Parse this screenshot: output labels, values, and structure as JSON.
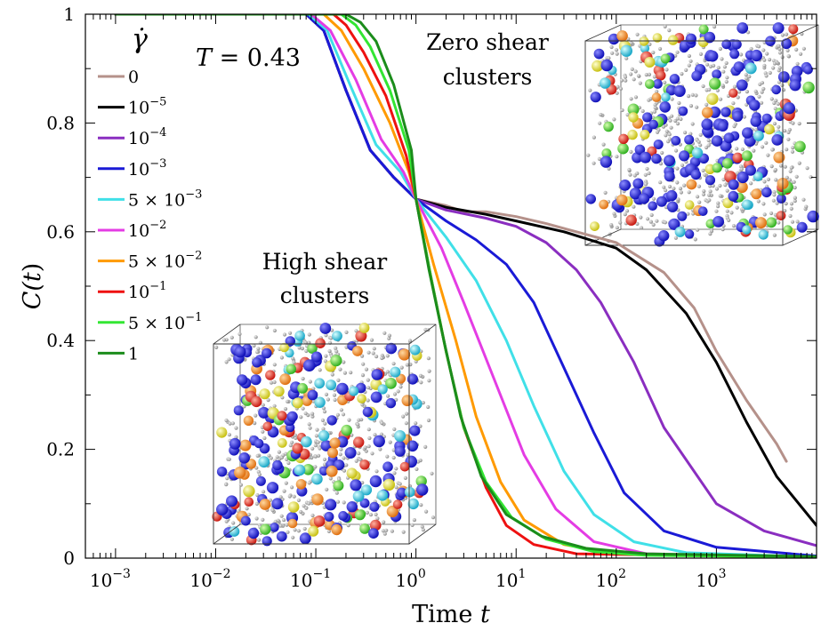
{
  "chart_data": {
    "type": "line",
    "x_scale": "log",
    "xlabel_prefix": "Time ",
    "xlabel_var": "t",
    "ylabel_main": "C(",
    "ylabel_var": "t",
    "ylabel_close": ")",
    "xlim": [
      0.0005,
      10000
    ],
    "ylim": [
      0,
      1
    ],
    "x_ticks": [
      {
        "value": 0.001,
        "base": "10",
        "exp": "−3"
      },
      {
        "value": 0.01,
        "base": "10",
        "exp": "−2"
      },
      {
        "value": 0.1,
        "base": "10",
        "exp": "−1"
      },
      {
        "value": 1,
        "base": "10",
        "exp": "0"
      },
      {
        "value": 10,
        "base": "10",
        "exp": "1"
      },
      {
        "value": 100,
        "base": "10",
        "exp": "2"
      },
      {
        "value": 1000,
        "base": "10",
        "exp": "3"
      }
    ],
    "y_ticks": [
      {
        "value": 0,
        "label": "0"
      },
      {
        "value": 0.2,
        "label": "0.2"
      },
      {
        "value": 0.4,
        "label": "0.4"
      },
      {
        "value": 0.6,
        "label": "0.6"
      },
      {
        "value": 0.8,
        "label": "0.8"
      },
      {
        "value": 1,
        "label": "1"
      }
    ],
    "legend_title": "γ̇",
    "legend_position": "top-left",
    "temperature": {
      "var": "T",
      "rest": " = 0.43"
    },
    "annotations": [
      {
        "line1": "Zero shear",
        "line2": "clusters"
      },
      {
        "line1": "High shear",
        "line2": "clusters"
      }
    ],
    "series": [
      {
        "name_main": "0",
        "name_exp": "",
        "color": "#b5918a",
        "points": [
          [
            0.001,
            1
          ],
          [
            0.08,
            1
          ],
          [
            0.12,
            0.97
          ],
          [
            0.2,
            0.86
          ],
          [
            0.35,
            0.75
          ],
          [
            0.6,
            0.7
          ],
          [
            1,
            0.66
          ],
          [
            2,
            0.648
          ],
          [
            3,
            0.637
          ],
          [
            5,
            0.637
          ],
          [
            10,
            0.628
          ],
          [
            20,
            0.615
          ],
          [
            40,
            0.6
          ],
          [
            100,
            0.58
          ],
          [
            300,
            0.525
          ],
          [
            600,
            0.46
          ],
          [
            1000,
            0.38
          ],
          [
            2000,
            0.29
          ],
          [
            4000,
            0.21
          ],
          [
            5000,
            0.178
          ]
        ]
      },
      {
        "name_main": "10",
        "name_exp": "−5",
        "color": "#000000",
        "points": [
          [
            0.001,
            1
          ],
          [
            0.08,
            1
          ],
          [
            0.12,
            0.97
          ],
          [
            0.2,
            0.86
          ],
          [
            0.35,
            0.75
          ],
          [
            0.6,
            0.7
          ],
          [
            1,
            0.66
          ],
          [
            2,
            0.645
          ],
          [
            5,
            0.632
          ],
          [
            10,
            0.62
          ],
          [
            30,
            0.6
          ],
          [
            100,
            0.57
          ],
          [
            200,
            0.53
          ],
          [
            500,
            0.45
          ],
          [
            1000,
            0.36
          ],
          [
            2000,
            0.25
          ],
          [
            4000,
            0.15
          ],
          [
            10000,
            0.06
          ]
        ]
      },
      {
        "name_main": "10",
        "name_exp": "−4",
        "color": "#8a2ec0",
        "points": [
          [
            0.001,
            1
          ],
          [
            0.08,
            1
          ],
          [
            0.12,
            0.97
          ],
          [
            0.2,
            0.86
          ],
          [
            0.35,
            0.75
          ],
          [
            0.6,
            0.7
          ],
          [
            1,
            0.66
          ],
          [
            2,
            0.64
          ],
          [
            5,
            0.625
          ],
          [
            10,
            0.61
          ],
          [
            20,
            0.58
          ],
          [
            40,
            0.53
          ],
          [
            70,
            0.47
          ],
          [
            150,
            0.36
          ],
          [
            300,
            0.24
          ],
          [
            1000,
            0.1
          ],
          [
            3000,
            0.05
          ],
          [
            10000,
            0.023
          ]
        ]
      },
      {
        "name_main": "10",
        "name_exp": "−3",
        "color": "#1a1ad6",
        "points": [
          [
            0.001,
            1
          ],
          [
            0.08,
            1
          ],
          [
            0.12,
            0.97
          ],
          [
            0.2,
            0.86
          ],
          [
            0.35,
            0.75
          ],
          [
            0.6,
            0.7
          ],
          [
            1,
            0.66
          ],
          [
            2,
            0.62
          ],
          [
            4,
            0.585
          ],
          [
            8,
            0.54
          ],
          [
            15,
            0.47
          ],
          [
            30,
            0.35
          ],
          [
            60,
            0.23
          ],
          [
            120,
            0.12
          ],
          [
            300,
            0.05
          ],
          [
            1000,
            0.02
          ],
          [
            10000,
            0.004
          ]
        ]
      },
      {
        "name_main": "5 × 10",
        "name_exp": "−3",
        "color": "#40e0e8",
        "points": [
          [
            0.001,
            1
          ],
          [
            0.085,
            1
          ],
          [
            0.13,
            0.97
          ],
          [
            0.22,
            0.87
          ],
          [
            0.4,
            0.76
          ],
          [
            0.7,
            0.71
          ],
          [
            1,
            0.66
          ],
          [
            2,
            0.59
          ],
          [
            4,
            0.51
          ],
          [
            8,
            0.4
          ],
          [
            15,
            0.28
          ],
          [
            30,
            0.16
          ],
          [
            60,
            0.08
          ],
          [
            150,
            0.03
          ],
          [
            500,
            0.01
          ],
          [
            10000,
            0.002
          ]
        ]
      },
      {
        "name_main": "10",
        "name_exp": "−2",
        "color": "#e43ce4",
        "points": [
          [
            0.001,
            1
          ],
          [
            0.09,
            1
          ],
          [
            0.14,
            0.97
          ],
          [
            0.25,
            0.88
          ],
          [
            0.45,
            0.77
          ],
          [
            0.75,
            0.71
          ],
          [
            1,
            0.66
          ],
          [
            1.8,
            0.57
          ],
          [
            3,
            0.47
          ],
          [
            6,
            0.33
          ],
          [
            12,
            0.19
          ],
          [
            25,
            0.09
          ],
          [
            60,
            0.03
          ],
          [
            200,
            0.008
          ],
          [
            10000,
            0.001
          ]
        ]
      },
      {
        "name_main": "5 × 10",
        "name_exp": "−2",
        "color": "#ff9a00",
        "points": [
          [
            0.001,
            1
          ],
          [
            0.12,
            1
          ],
          [
            0.18,
            0.97
          ],
          [
            0.3,
            0.9
          ],
          [
            0.55,
            0.8
          ],
          [
            0.85,
            0.71
          ],
          [
            1,
            0.66
          ],
          [
            1.5,
            0.54
          ],
          [
            2.5,
            0.4
          ],
          [
            4,
            0.26
          ],
          [
            7,
            0.14
          ],
          [
            12,
            0.07
          ],
          [
            30,
            0.025
          ],
          [
            100,
            0.008
          ],
          [
            10000,
            0.001
          ]
        ]
      },
      {
        "name_main": "10",
        "name_exp": "−1",
        "color": "#ee1111",
        "points": [
          [
            0.001,
            1
          ],
          [
            0.15,
            1
          ],
          [
            0.2,
            0.98
          ],
          [
            0.3,
            0.93
          ],
          [
            0.5,
            0.85
          ],
          [
            0.8,
            0.74
          ],
          [
            1,
            0.66
          ],
          [
            1.4,
            0.52
          ],
          [
            2,
            0.38
          ],
          [
            3,
            0.24
          ],
          [
            5,
            0.13
          ],
          [
            8,
            0.06
          ],
          [
            15,
            0.025
          ],
          [
            40,
            0.008
          ],
          [
            10000,
            0.001
          ]
        ]
      },
      {
        "name_main": "5 × 10",
        "name_exp": "−1",
        "color": "#33e633",
        "points": [
          [
            0.001,
            1
          ],
          [
            0.18,
            1
          ],
          [
            0.25,
            0.98
          ],
          [
            0.35,
            0.94
          ],
          [
            0.55,
            0.86
          ],
          [
            0.85,
            0.75
          ],
          [
            1,
            0.66
          ],
          [
            1.4,
            0.52
          ],
          [
            2,
            0.38
          ],
          [
            3,
            0.24
          ],
          [
            5,
            0.14
          ],
          [
            9,
            0.075
          ],
          [
            20,
            0.035
          ],
          [
            60,
            0.012
          ],
          [
            200,
            0.005
          ],
          [
            10000,
            0.002
          ]
        ]
      },
      {
        "name_main": "1",
        "name_exp": "",
        "color": "#1b8c1b",
        "points": [
          [
            0.001,
            1
          ],
          [
            0.2,
            1
          ],
          [
            0.28,
            0.985
          ],
          [
            0.4,
            0.95
          ],
          [
            0.6,
            0.87
          ],
          [
            0.9,
            0.75
          ],
          [
            1,
            0.66
          ],
          [
            1.35,
            0.53
          ],
          [
            1.9,
            0.4
          ],
          [
            2.8,
            0.26
          ],
          [
            4.5,
            0.15
          ],
          [
            8,
            0.08
          ],
          [
            18,
            0.04
          ],
          [
            50,
            0.018
          ],
          [
            200,
            0.008
          ],
          [
            10000,
            0.003
          ]
        ]
      }
    ]
  }
}
